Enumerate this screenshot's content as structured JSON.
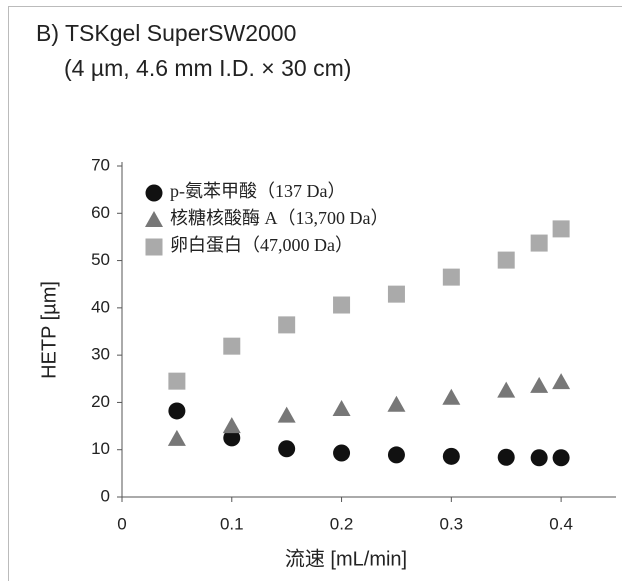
{
  "chart_data": {
    "type": "scatter",
    "title": "B)  TSKgel SuperSW2000",
    "subtitle": "(4 µm, 4.6 mm I.D. × 30 cm)",
    "x_label": "流速 [mL/min]",
    "y_label": "HETP [µm]",
    "xlim": [
      0,
      0.45
    ],
    "xticks": [
      0,
      0.1,
      0.2,
      0.3,
      0.4
    ],
    "ylim": [
      0,
      70
    ],
    "yticks": [
      0,
      10,
      20,
      30,
      40,
      50,
      60,
      70
    ],
    "legend": "upper-left",
    "series": [
      {
        "name": "p-氨苯甲酸（137 Da）",
        "color": "#111111",
        "marker": "circle",
        "x": [
          0.05,
          0.1,
          0.15,
          0.2,
          0.25,
          0.3,
          0.35,
          0.38,
          0.4
        ],
        "values": [
          18.2,
          12.5,
          10.2,
          9.3,
          8.9,
          8.6,
          8.4,
          8.3,
          8.3
        ]
      },
      {
        "name": "核糖核酸酶 A（13,700 Da）",
        "color": "#777777",
        "marker": "triangle",
        "x": [
          0.05,
          0.1,
          0.15,
          0.2,
          0.25,
          0.3,
          0.35,
          0.38,
          0.4
        ],
        "values": [
          12.3,
          15,
          17.2,
          18.6,
          19.5,
          21,
          22.5,
          23.5,
          24.3
        ]
      },
      {
        "name": "卵白蛋白（47,000 Da）",
        "color": "#aaaaaa",
        "marker": "square",
        "x": [
          0.05,
          0.1,
          0.15,
          0.2,
          0.25,
          0.3,
          0.35,
          0.38,
          0.4
        ],
        "values": [
          24.5,
          31.9,
          36.4,
          40.6,
          42.9,
          46.5,
          50.1,
          53.7,
          56.7
        ]
      }
    ]
  }
}
